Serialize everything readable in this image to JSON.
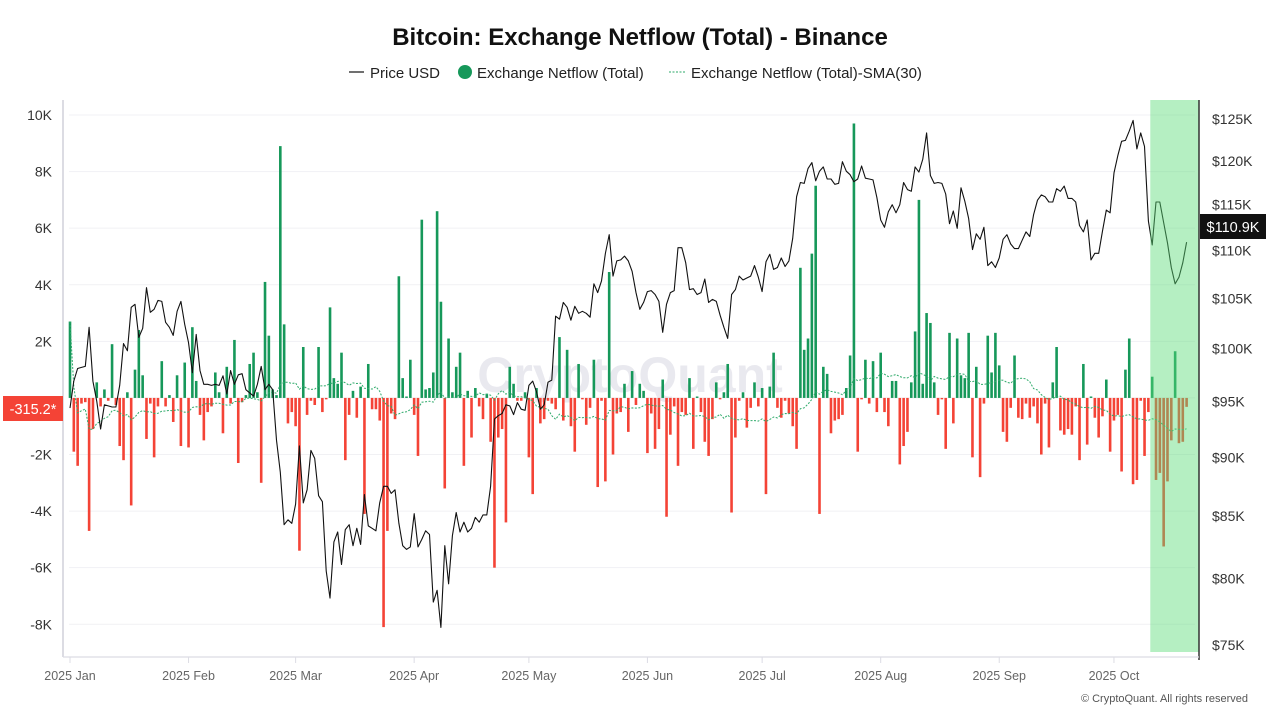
{
  "chart_data": {
    "type": "bar+line",
    "title": "Bitcoin: Exchange Netflow (Total) - Binance",
    "watermark": "CryptoQuant",
    "copyright": "© CryptoQuant. All rights reserved",
    "legend": {
      "placement": "top-center",
      "items": [
        "Price USD",
        "Exchange Netflow (Total)",
        "Exchange Netflow (Total)-SMA(30)"
      ]
    },
    "colors": {
      "price": "#111111",
      "inflow": "#16985a",
      "outflow": "#f44336",
      "sma": "#2eaa6a",
      "highlight": "#b2f0c4",
      "last_netflow_badge": "#f44336",
      "last_price_badge": "#111111"
    },
    "left_axis": {
      "ticks": [
        "10K",
        "8K",
        "6K",
        "4K",
        "2K",
        "",
        "-2K",
        "-4K",
        "-6K",
        "-8K"
      ],
      "tick_values": [
        10000,
        8000,
        6000,
        4000,
        2000,
        0,
        -2000,
        -4000,
        -6000,
        -8000
      ],
      "ylim": [
        -8980,
        10530
      ],
      "grid": true
    },
    "right_axis": {
      "scale": "log",
      "ticks": [
        "$125K",
        "$120K",
        "$115K",
        "$110K",
        "$105K",
        "$100K",
        "$95K",
        "$90K",
        "$85K",
        "$80K",
        "$75K"
      ],
      "tick_values": [
        125000,
        120000,
        115000,
        110000,
        105000,
        100000,
        95000,
        90000,
        85000,
        80000,
        75000
      ],
      "ylim": [
        74500,
        127300
      ]
    },
    "x_axis": {
      "ticks": [
        "2025 Jan",
        "2025 Feb",
        "2025 Mar",
        "2025 Apr",
        "2025 May",
        "2025 Jun",
        "2025 Jul",
        "2025 Aug",
        "2025 Sep",
        "2025 Oct"
      ],
      "tick_dates": [
        "2025-01-01",
        "2025-02-01",
        "2025-03-01",
        "2025-04-01",
        "2025-05-01",
        "2025-06-01",
        "2025-07-01",
        "2025-08-01",
        "2025-09-01",
        "2025-10-01"
      ]
    },
    "last_values": {
      "netflow": "-315.2*",
      "price": "$110.9K"
    },
    "highlight": {
      "from": "2025-10-11",
      "to": "2025-10-20"
    },
    "months": [
      "2025-01",
      "2025-02",
      "2025-03",
      "2025-04",
      "2025-05",
      "2025-06",
      "2025-07",
      "2025-08",
      "2025-09",
      "2025-10"
    ],
    "netflow_daily": {
      "2025-01": [
        2700,
        -1900,
        -2400,
        -200,
        -150,
        -4700,
        -1100,
        550,
        -300,
        300,
        -100,
        1900,
        -250,
        -1700,
        -2200,
        200,
        -3800,
        1000,
        2400,
        800,
        -1450,
        -200,
        -2100,
        -300,
        1300,
        -300,
        100,
        -850,
        800,
        -1700,
        1250
      ],
      "2025-02": [
        -1750,
        2500,
        600,
        -600,
        -1500,
        -500,
        -300,
        900,
        200,
        -1250,
        1100,
        -200,
        2050,
        -2300,
        -150,
        100,
        1200,
        1600,
        200,
        -3000,
        4100,
        2200,
        300,
        100,
        8900,
        2600,
        -900,
        -500
      ],
      "2025-03": [
        -1000,
        -5400,
        1800,
        -600,
        -100,
        -250,
        1800,
        -500,
        -50,
        3200,
        700,
        500,
        1600,
        -2200,
        -600,
        250,
        -700,
        400,
        -4100,
        1200,
        -400,
        -400,
        -800,
        -8100,
        -4700,
        -550,
        -750,
        4300,
        700,
        50,
        1350
      ],
      "2025-04": [
        -600,
        -2050,
        6300,
        300,
        350,
        900,
        6600,
        3400,
        -3200,
        2100,
        200,
        1100,
        1600,
        -2400,
        250,
        -1400,
        350,
        -300,
        -750,
        150,
        -1550,
        -6000,
        -1400,
        -1100,
        -4400,
        1100,
        500,
        -100,
        -100,
        200
      ],
      "2025-05": [
        -2100,
        -3400,
        350,
        -900,
        -750,
        -100,
        -200,
        -400,
        2150,
        -800,
        1700,
        -1000,
        -1900,
        1200,
        -50,
        -950,
        -350,
        1350,
        -3150,
        -100,
        -2950,
        4450,
        -2000,
        -550,
        -500,
        500,
        -1200,
        950,
        -250,
        500,
        250
      ],
      "2025-06": [
        -1950,
        -550,
        -1800,
        -1100,
        650,
        -4200,
        -1300,
        -300,
        -2400,
        -500,
        -600,
        700,
        -1800,
        50,
        -500,
        -1550,
        -2050,
        -750,
        550,
        -50,
        200,
        1200,
        -4050,
        -1400,
        -100,
        200,
        -1050,
        -350,
        550,
        -300
      ],
      "2025-07": [
        350,
        -3400,
        400,
        1600,
        -350,
        -700,
        -100,
        -550,
        -1000,
        -1800,
        4600,
        1700,
        2100,
        5100,
        7500,
        -4100,
        1100,
        850,
        -1250,
        -800,
        -750,
        -600,
        350,
        1500,
        9700,
        -1900,
        -50,
        1350,
        -200,
        1300,
        -500
      ],
      "2025-08": [
        1600,
        -500,
        -1000,
        600,
        600,
        -2350,
        -1700,
        -1200,
        550,
        2350,
        7000,
        500,
        3000,
        2650,
        550,
        -600,
        -50,
        -1800,
        2300,
        -900,
        2100,
        800,
        700,
        2300,
        -2100,
        1100,
        -2800,
        -200,
        2200,
        900,
        2300
      ],
      "2025-09": [
        1150,
        -1200,
        -1550,
        -350,
        1500,
        -700,
        -750,
        -200,
        -700,
        -300,
        -900,
        -2000,
        -200,
        -1750,
        550,
        1800,
        -1150,
        -1300,
        -1100,
        -1300,
        -300,
        -2200,
        1200,
        -1650,
        50,
        -700,
        -1400,
        -650,
        650,
        -1900
      ],
      "2025-10": [
        -800,
        -600,
        -2600,
        1000,
        2100,
        -3050,
        -2900,
        -100,
        -2050,
        -500,
        750,
        -2900,
        -2650,
        -5250,
        -2950,
        -1500,
        1650,
        -1600,
        -1550,
        -315.2
      ]
    },
    "price_usd_daily": {
      "2025-01": [
        94400,
        96900,
        98100,
        98200,
        98300,
        102100,
        96900,
        95000,
        92500,
        94700,
        94600,
        94500,
        94500,
        96500,
        100500,
        99800,
        104100,
        104400,
        101100,
        102000,
        106100,
        103600,
        103900,
        104800,
        104700,
        102600,
        102100,
        101300,
        103700,
        104700,
        102400
      ],
      "2025-02": [
        100600,
        97700,
        101400,
        97900,
        96600,
        96600,
        96500,
        96600,
        96500,
        97400,
        95700,
        97900,
        96600,
        97500,
        97600,
        96100,
        95800,
        95500,
        96600,
        98300,
        96100,
        96600,
        96100,
        91500,
        88700,
        84300,
        84700,
        84400
      ],
      "2025-03": [
        86000,
        91000,
        86100,
        87200,
        90600,
        89900,
        86700,
        86200,
        80600,
        78500,
        82900,
        83700,
        81100,
        83900,
        84300,
        82600,
        84000,
        82700,
        86800,
        84200,
        84000,
        83800,
        86100,
        87500,
        87500,
        86900,
        87200,
        84400,
        82600,
        82300,
        82500
      ],
      "2025-04": [
        85200,
        82500,
        83100,
        83800,
        83500,
        78200,
        79100,
        76300,
        82600,
        79600,
        83400,
        85300,
        83700,
        84500,
        83700,
        84000,
        84900,
        84500,
        85100,
        85100,
        87500,
        93400,
        93700,
        93900,
        94700,
        94600,
        93800,
        94900,
        94300,
        94200
      ],
      "2025-05": [
        96500,
        96900,
        95900,
        94300,
        94700,
        96800,
        97000,
        103200,
        102900,
        104600,
        104100,
        102800,
        104200,
        103500,
        103700,
        103500,
        103100,
        106500,
        105600,
        106800,
        109700,
        111700,
        107300,
        108900,
        109000,
        109400,
        108900,
        107800,
        105600,
        103900,
        104600
      ],
      "2025-06": [
        105700,
        105800,
        105400,
        104700,
        101600,
        104400,
        105600,
        105800,
        110300,
        110300,
        108700,
        105900,
        106000,
        105400,
        105600,
        107000,
        104600,
        104900,
        104700,
        103300,
        102100,
        101000,
        105400,
        105900,
        107300,
        106900,
        107100,
        107300,
        108400,
        107200
      ],
      "2025-07": [
        105700,
        108800,
        109600,
        108000,
        108200,
        109200,
        108300,
        108900,
        111300,
        115900,
        117500,
        117400,
        119100,
        119800,
        117700,
        118800,
        119300,
        117900,
        117900,
        117300,
        117400,
        119900,
        118800,
        118400,
        117600,
        117900,
        119400,
        118000,
        117900,
        117800,
        115800
      ],
      "2025-08": [
        113300,
        112500,
        114200,
        115000,
        114100,
        115000,
        117500,
        116700,
        116500,
        119300,
        118700,
        120200,
        123300,
        118300,
        117400,
        117500,
        117400,
        116200,
        112900,
        114300,
        112400,
        116900,
        115400,
        113500,
        110100,
        111800,
        111200,
        112500,
        108400,
        108800,
        108200
      ],
      "2025-09": [
        109200,
        111200,
        111700,
        110700,
        110200,
        110200,
        111100,
        112000,
        111500,
        113900,
        115500,
        116100,
        115900,
        115300,
        115300,
        116800,
        116500,
        117100,
        115700,
        115700,
        115300,
        112700,
        112000,
        113300,
        109000,
        109700,
        109700,
        112100,
        114400,
        114100
      ],
      "2025-10": [
        118600,
        120600,
        122300,
        122400,
        123500,
        124800,
        121400,
        123300,
        121700,
        113200,
        110600,
        115300,
        115300,
        113000,
        110800,
        108200,
        106500,
        107200,
        108700,
        110900
      ]
    }
  }
}
